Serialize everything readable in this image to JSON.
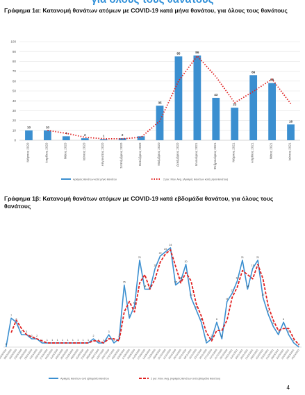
{
  "header": {
    "title": "για όλους τους θανάτους",
    "page_number": "4"
  },
  "chart_data": [
    {
      "type": "bar",
      "title": "Γράφημα 1α: Κατανομή θανάτων ατόμων με COVID-19 κατά μήνα θανάτου, για όλους τους θανάτους",
      "categories": [
        "Μάρτιος 2020",
        "Απρίλιος 2020",
        "Μάιος 2020",
        "Ιούνιος 2020",
        "Αύγουστος 2020",
        "Σεπτέμβριος 2020",
        "Οκτώβριος 2020",
        "Νοέμβριος 2020",
        "Δεκέμβριος 2020",
        "Ιανουάριος 2021",
        "Φεβρουάριος 2021",
        "Μάρτιος 2021",
        "Απρίλιος 2021",
        "Μάιος 2021",
        "Ιούνιος 2021"
      ],
      "series": [
        {
          "name": "Αριθμός θανάτων κατά μήνα θανάτου",
          "color": "#3b8fd0",
          "values": [
            10,
            10,
            4,
            2,
            1,
            2,
            4,
            35,
            85,
            86,
            43,
            33,
            66,
            58,
            16
          ],
          "value_labels": [
            "10",
            "10",
            "4",
            "2",
            "1",
            "2",
            null,
            "35",
            "85",
            "86",
            "43",
            "33",
            "66",
            "58",
            "16"
          ]
        },
        {
          "name": "2 per. Mov. Avg. (Αριθμός θανάτων κατά μήνα θανάτου)",
          "type": "line",
          "style": "dotted",
          "color": "#e02020",
          "values": [
            null,
            10,
            7,
            3,
            1.5,
            1.5,
            3,
            19.5,
            60,
            85.5,
            64.5,
            38,
            49.5,
            62,
            37
          ]
        }
      ],
      "ylim": [
        0,
        100
      ],
      "yticks": [
        0,
        10,
        20,
        30,
        40,
        50,
        60,
        70,
        80,
        90,
        100
      ],
      "grid": true,
      "legend": "bottom"
    },
    {
      "type": "line",
      "title": "Γράφημα 1β: Κατανομή θανάτων ατόμων με COVID-19 κατά εβδομάδα θανάτου, για όλους τους θανάτους",
      "categories": [
        "02/03/2020",
        "09/03/2020",
        "16/03/2020",
        "23/03/2020",
        "30/03/2020",
        "06/04/2020",
        "13/04/2020",
        "20/04/2020",
        "27/04/2020",
        "04/05/2020",
        "11/05/2020",
        "18/05/2020",
        "25/05/2020",
        "01/06/2020",
        "08/06/2020",
        "15/06/2020",
        "22/06/2020",
        "29/06/2020",
        "06/07/2020",
        "13/07/2020",
        "20/07/2020",
        "27/07/2020",
        "03/08/2020",
        "10/08/2020",
        "17/08/2020",
        "24/08/2020",
        "31/08/2020",
        "07/09/2020",
        "14/09/2020",
        "21/09/2020",
        "28/09/2020",
        "05/10/2020",
        "12/10/2020",
        "19/10/2020",
        "26/10/2020",
        "02/11/2020",
        "09/11/2020",
        "16/11/2020",
        "23/11/2020",
        "30/11/2020",
        "07/12/2020",
        "14/12/2020",
        "21/12/2020",
        "28/12/2020",
        "04/01/2021",
        "11/01/2021",
        "18/01/2021",
        "25/01/2021",
        "01/02/2021",
        "08/02/2021",
        "15/02/2021",
        "22/02/2021",
        "01/03/2021",
        "08/03/2021",
        "15/03/2021",
        "22/03/2021",
        "29/03/2021",
        "05/04/2021"
      ],
      "series": [
        {
          "name": "Αριθμός θανάτων ανά εβδομάδα θανάτου",
          "color": "#3b8fd0",
          "values": [
            0,
            7,
            6,
            3,
            3,
            2,
            2,
            1,
            1,
            1,
            1,
            1,
            1,
            1,
            1,
            1,
            1,
            2,
            1,
            1,
            3,
            1,
            2,
            15,
            7,
            10,
            21,
            14,
            14,
            19,
            22,
            23,
            24,
            15,
            16,
            20,
            12,
            9,
            6,
            1,
            2,
            6,
            2,
            11,
            13,
            16,
            21,
            14,
            19,
            21,
            12,
            8,
            5,
            3,
            6,
            3,
            1,
            0
          ]
        },
        {
          "name": "2 per. Mov. Avg. (Αριθμός θανάτων ανά εβδομάδα θανάτου)",
          "style": "dashed",
          "color": "#e02020",
          "values": [
            null,
            3.5,
            6.5,
            4.5,
            3,
            2.5,
            2,
            1.5,
            1,
            1,
            1,
            1,
            1,
            1,
            1,
            1,
            1,
            1.5,
            1.5,
            1,
            2,
            2,
            1.5,
            8.5,
            11,
            8.5,
            15.5,
            17.5,
            14,
            16.5,
            20.5,
            22.5,
            23.5,
            19.5,
            15.5,
            18,
            16,
            10.5,
            7.5,
            3.5,
            1.5,
            4,
            4,
            6.5,
            12,
            14.5,
            18.5,
            17.5,
            16.5,
            20,
            16.5,
            10,
            6.5,
            4,
            4.5,
            4.5,
            2,
            0.5
          ]
        }
      ],
      "ylim": [
        0,
        26
      ],
      "legend": "bottom"
    }
  ]
}
